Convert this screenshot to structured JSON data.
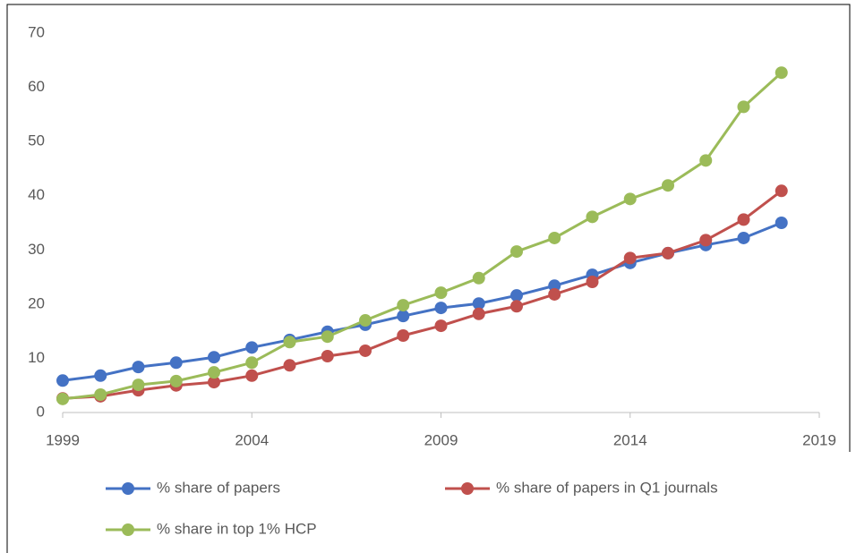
{
  "chart_data": {
    "type": "line",
    "x": [
      1999,
      2000,
      2001,
      2002,
      2003,
      2004,
      2005,
      2006,
      2007,
      2008,
      2009,
      2010,
      2011,
      2012,
      2013,
      2014,
      2015,
      2016,
      2017,
      2018
    ],
    "series": [
      {
        "name": "% share of papers",
        "color": "#4472c4",
        "values": [
          5.9,
          6.8,
          8.4,
          9.2,
          10.2,
          12.0,
          13.4,
          14.9,
          16.2,
          17.8,
          19.3,
          20.1,
          21.6,
          23.4,
          25.4,
          27.6,
          29.4,
          30.9,
          32.2,
          35.0
        ]
      },
      {
        "name": "% share of papers in Q1 journals",
        "color": "#c0504d",
        "values": [
          2.6,
          3.0,
          4.1,
          5.0,
          5.6,
          6.8,
          8.7,
          10.4,
          11.4,
          14.2,
          16.0,
          18.2,
          19.6,
          21.8,
          24.1,
          28.5,
          29.4,
          31.8,
          35.6,
          40.9
        ]
      },
      {
        "name": "% share in top 1% HCP",
        "color": "#9bbb59",
        "values": [
          2.5,
          3.3,
          5.1,
          5.8,
          7.4,
          9.2,
          13.0,
          14.0,
          17.0,
          19.8,
          22.1,
          24.8,
          29.7,
          32.2,
          36.1,
          39.4,
          41.9,
          46.5,
          56.4,
          62.7
        ]
      }
    ],
    "xlim": [
      1999,
      2019
    ],
    "xticks": [
      1999,
      2004,
      2009,
      2014,
      2019
    ],
    "ylim": [
      0,
      70
    ],
    "yticks": [
      0,
      10,
      20,
      30,
      40,
      50,
      60,
      70
    ],
    "grid": false,
    "legend": "bottom"
  }
}
